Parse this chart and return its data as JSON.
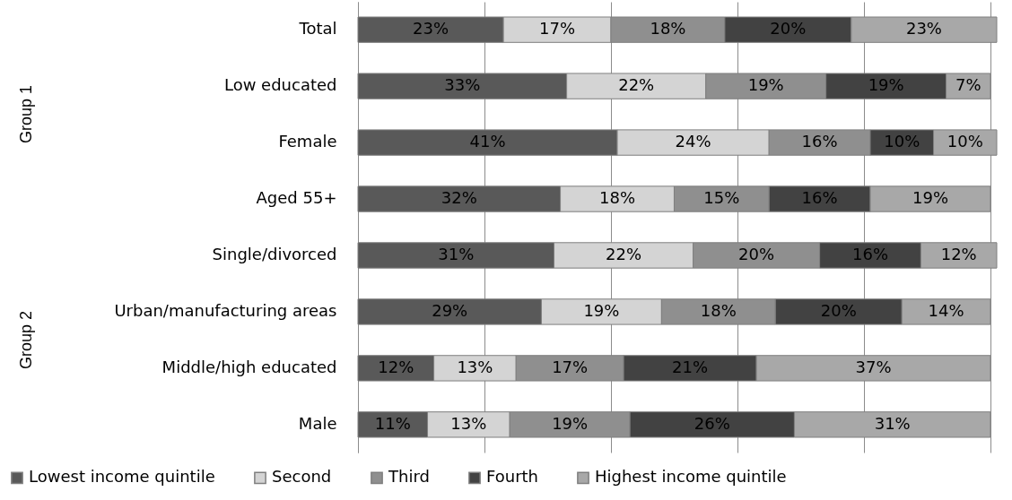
{
  "chart_data": {
    "type": "bar",
    "orientation": "horizontal",
    "stacked": true,
    "categories": [
      "Total",
      "Low educated",
      "Female",
      "Aged 55+",
      "Single/divorced",
      "Urban/manufacturing areas",
      "Middle/high educated",
      "Male"
    ],
    "series": [
      {
        "name": "Lowest income quintile",
        "color": "#595959",
        "values": [
          23,
          33,
          41,
          32,
          31,
          29,
          12,
          11
        ],
        "value_labels": [
          "23%",
          "33%",
          "41%",
          "32%",
          "31%",
          "29%",
          "12%",
          "11%"
        ]
      },
      {
        "name": "Second",
        "color": "#d4d4d4",
        "values": [
          17,
          22,
          24,
          18,
          22,
          19,
          13,
          13
        ],
        "value_labels": [
          "17%",
          "22%",
          "24%",
          "18%",
          "22%",
          "19%",
          "13%",
          "13%"
        ]
      },
      {
        "name": "Third",
        "color": "#8f8f8f",
        "values": [
          18,
          19,
          16,
          15,
          20,
          18,
          17,
          19
        ],
        "value_labels": [
          "18%",
          "19%",
          "16%",
          "15%",
          "20%",
          "18%",
          "17%",
          "19%"
        ]
      },
      {
        "name": "Fourth",
        "color": "#424242",
        "values": [
          20,
          19,
          10,
          16,
          16,
          20,
          21,
          26
        ],
        "value_labels": [
          "20%",
          "19%",
          "10%",
          "16%",
          "16%",
          "20%",
          "21%",
          "26%"
        ]
      },
      {
        "name": "Highest income quintile",
        "color": "#a8a8a8",
        "values": [
          23,
          7,
          10,
          19,
          12,
          14,
          37,
          31
        ],
        "value_labels": [
          "23%",
          "7%",
          "10%",
          "19%",
          "12%",
          "14%",
          "37%",
          "31%"
        ]
      }
    ],
    "xlim": [
      0,
      101
    ],
    "xticks": [
      {
        "value": 0,
        "label": null
      },
      {
        "value": 20,
        "label": null
      },
      {
        "value": 40,
        "label": null
      },
      {
        "value": 60,
        "label": null
      },
      {
        "value": 80,
        "label": null
      },
      {
        "value": 100,
        "label": null
      }
    ],
    "grid": "x",
    "legend": "bottom",
    "tick_labels": "y",
    "annotations": [
      "Group 1",
      "Group 2"
    ]
  }
}
